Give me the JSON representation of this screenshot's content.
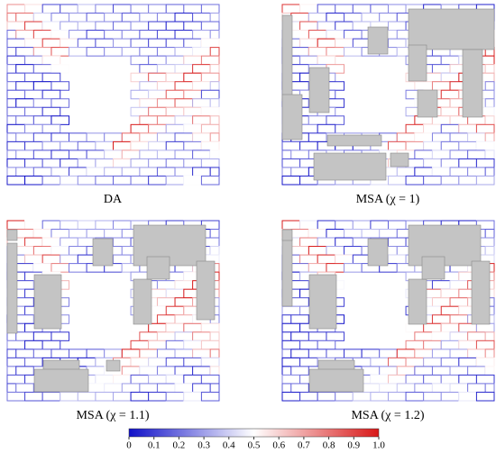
{
  "panels": [
    {
      "label": "DA"
    },
    {
      "label": "MSA (χ = 1)"
    },
    {
      "label": "MSA (χ = 1.1)"
    },
    {
      "label": "MSA (χ = 1.2)"
    }
  ],
  "colorbar": {
    "ticks": [
      0,
      0.1,
      0.2,
      0.3,
      0.4,
      0.5,
      0.6,
      0.7,
      0.8,
      0.9,
      {
        "value": 1,
        "label": "1.0"
      }
    ]
  }
}
